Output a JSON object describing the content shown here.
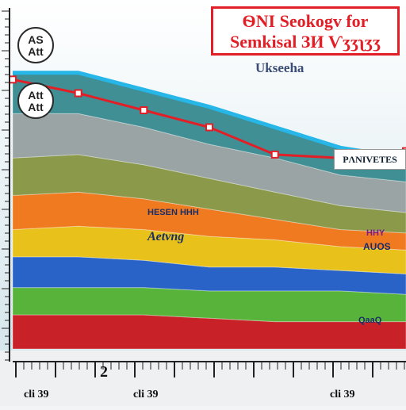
{
  "title_lines": [
    "ѲΝΙ Seokogv for",
    "Semkisal ЗИ Ѵʒʒʅʒʒ"
  ],
  "subtitle": "Ukseeha",
  "badges": [
    {
      "lines": [
        "AS",
        "Att"
      ]
    },
    {
      "lines": [
        "Att",
        "Att"
      ]
    }
  ],
  "legend_label": "PΛΝΙVETES",
  "annotations": {
    "label_a": "HESEN  HHH",
    "label_b": "Aetvng",
    "label_c": "HHY",
    "label_d": "AUOS",
    "label_e": "QaaQ"
  },
  "x_tick_labels": [
    "cli 39",
    "cli 39",
    "cli 39"
  ],
  "x_digit": "2",
  "colors": {
    "title_red": "#e21f26",
    "sky": "#a8c8d8",
    "teal": "#3f8f94",
    "gray": "#9aa4a4",
    "olive": "#8a9a4a",
    "orange": "#f07a20",
    "yellow": "#e8c21a",
    "blue": "#2a63c8",
    "green": "#58b33a",
    "red": "#d7262a",
    "pink": "#f3a6a8"
  },
  "chart_data": {
    "type": "area",
    "title": "ѲΝΙ Seokogv for Semkisal ЗИ Ѵʒʒʅʒʒ",
    "subtitle": "Ukseeha",
    "categories": [
      "cli 39",
      "cli 39",
      "cli 39"
    ],
    "ylim": [
      0,
      10
    ],
    "grid": false,
    "legend_position": "right",
    "stacked": true,
    "x": [
      0,
      1,
      2,
      3,
      4,
      5,
      6
    ],
    "series": [
      {
        "color": "#c82228",
        "values": [
          1.0,
          1.0,
          1.0,
          0.9,
          0.8,
          0.8,
          0.8
        ]
      },
      {
        "color": "#58b33a",
        "values": [
          0.8,
          0.8,
          0.8,
          0.8,
          0.9,
          0.9,
          0.8
        ]
      },
      {
        "color": "#2a63c8",
        "values": [
          0.9,
          0.9,
          0.8,
          0.7,
          0.7,
          0.6,
          0.6
        ]
      },
      {
        "color": "#e8c21a",
        "values": [
          0.8,
          0.9,
          0.9,
          0.9,
          0.8,
          0.7,
          0.7
        ]
      },
      {
        "color": "#f07a20",
        "values": [
          1.0,
          1.0,
          0.9,
          0.8,
          0.6,
          0.5,
          0.5
        ]
      },
      {
        "color": "#8a9a4a",
        "values": [
          1.1,
          1.1,
          1.0,
          0.9,
          0.8,
          0.7,
          0.6
        ]
      },
      {
        "color": "#9aa4a4",
        "values": [
          1.3,
          1.2,
          1.1,
          1.0,
          1.0,
          0.9,
          0.9
        ]
      },
      {
        "color": "#3f8f94",
        "values": [
          1.2,
          1.2,
          1.1,
          1.1,
          0.9,
          0.8,
          0.7
        ]
      }
    ],
    "trend_line": {
      "color": "#e21f26",
      "values": [
        7.9,
        7.5,
        7.0,
        6.5,
        5.7,
        5.6,
        5.8
      ]
    }
  }
}
